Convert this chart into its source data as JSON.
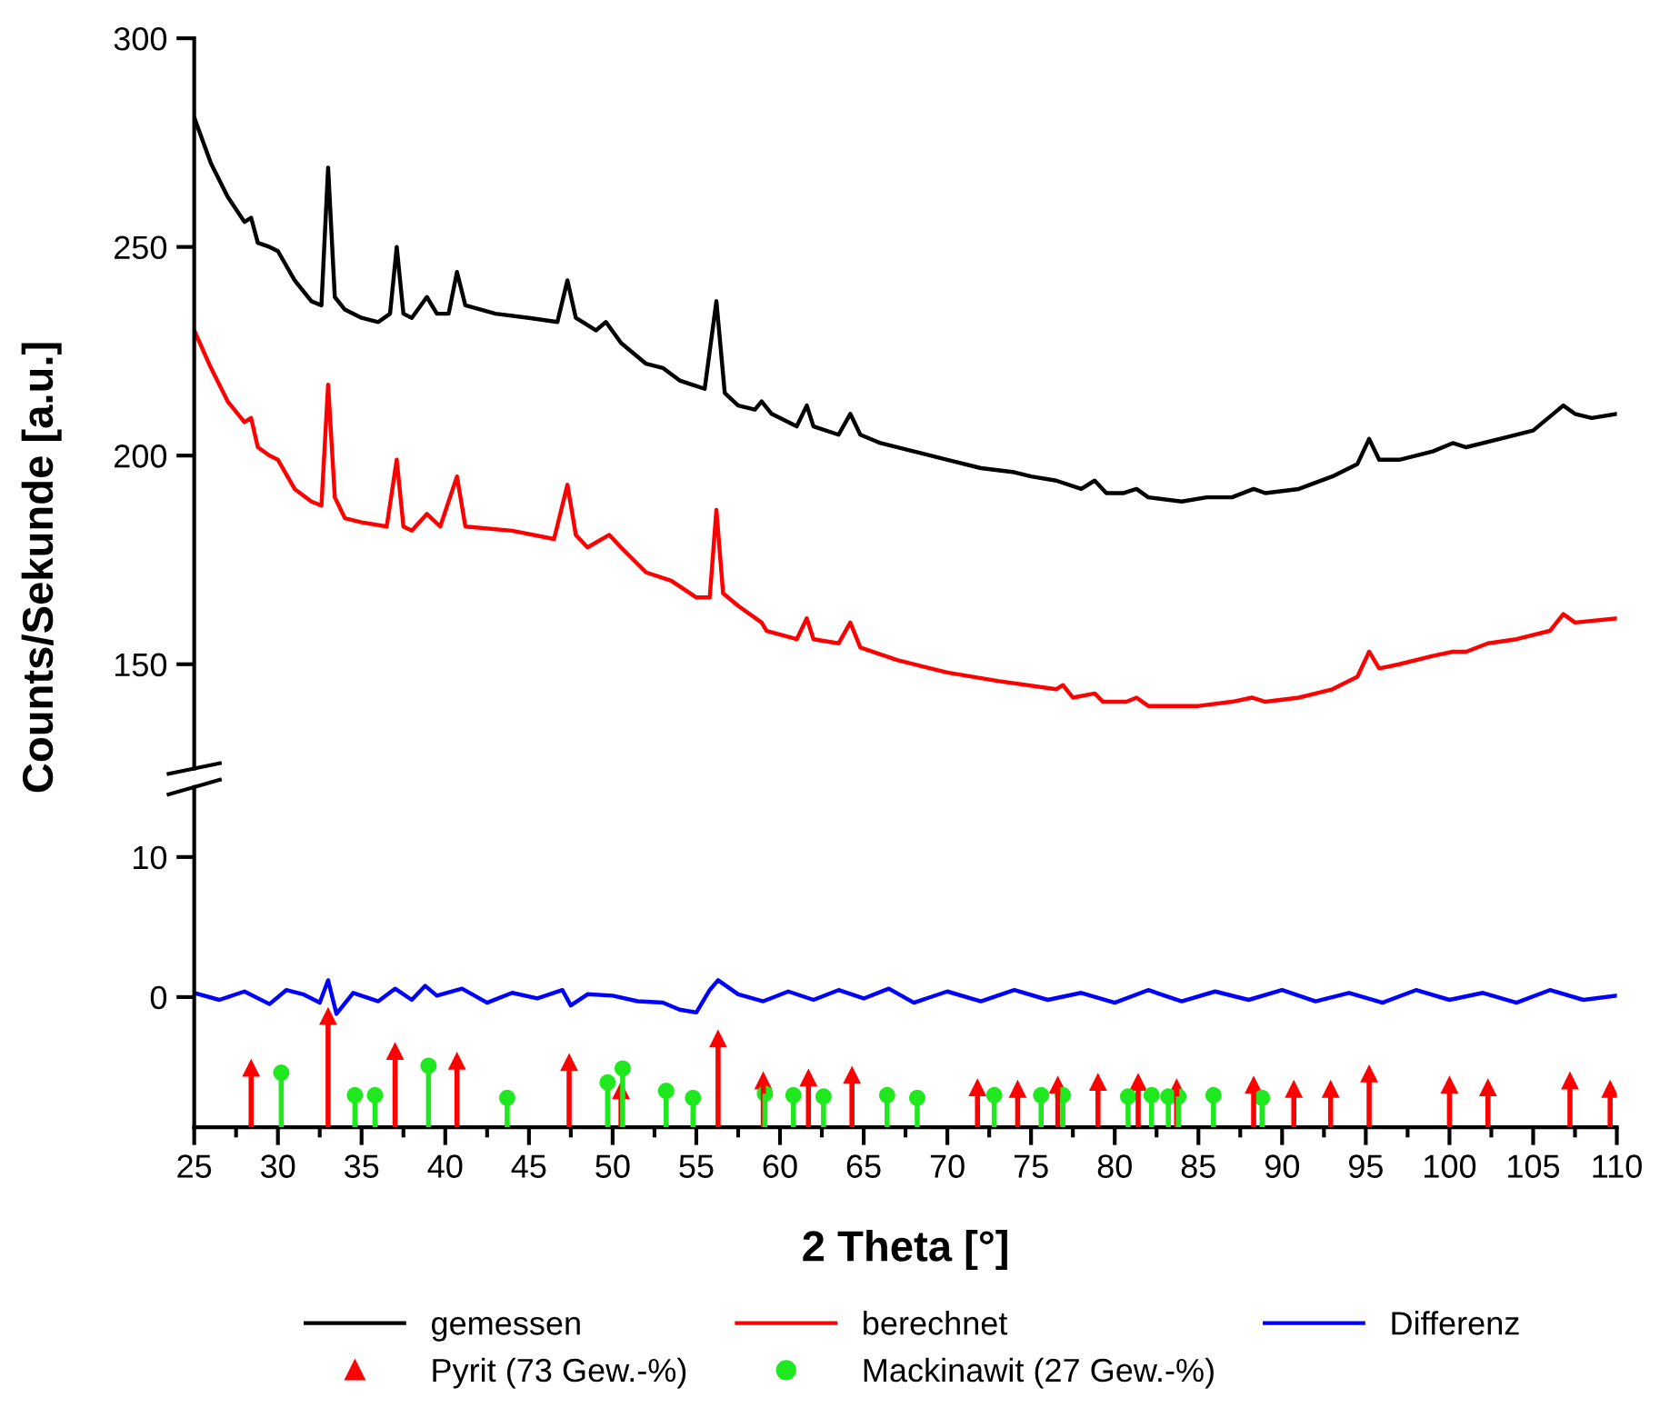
{
  "chart_data": [
    {
      "type": "line",
      "ylabel": "Counts/Sekunde [a.u.]",
      "xlim": [
        25,
        110
      ],
      "ylim": [
        125,
        300
      ],
      "yticks": [
        150,
        200,
        250,
        300
      ],
      "tick_labels": "y",
      "grid": false,
      "legend": "bottom",
      "marker": "none",
      "line_style": "solid",
      "series": [
        {
          "name": "gemessen",
          "color": "#000000",
          "x": [
            25,
            26,
            27,
            28,
            28.4,
            28.8,
            29.5,
            30,
            31,
            32,
            32.6,
            33,
            33.4,
            34,
            35,
            36,
            36.7,
            37.1,
            37.5,
            38,
            38.9,
            39.5,
            40.2,
            40.7,
            41.2,
            43,
            45,
            46.7,
            47.3,
            47.8,
            49,
            49.6,
            50.5,
            52,
            53,
            54,
            55.5,
            56.2,
            56.7,
            57.5,
            58.5,
            58.9,
            59.5,
            61,
            61.6,
            62,
            63.5,
            64.2,
            64.8,
            66,
            68,
            70,
            72,
            74,
            75,
            76.5,
            78,
            78.8,
            79.5,
            80.5,
            81.3,
            82,
            84,
            85.5,
            87,
            88.3,
            89,
            91,
            93,
            94.5,
            95.2,
            95.8,
            97,
            99,
            100.2,
            101,
            103,
            105,
            106.8,
            107.5,
            108.5,
            110
          ],
          "values": [
            281,
            270,
            262,
            256,
            257,
            251,
            250,
            249,
            242,
            237,
            236,
            269,
            238,
            235,
            233,
            232,
            234,
            250,
            234,
            233,
            238,
            234,
            234,
            244,
            236,
            234,
            233,
            232,
            242,
            233,
            230,
            232,
            227,
            222,
            221,
            218,
            216,
            237,
            215,
            212,
            211,
            213,
            210,
            207,
            212,
            207,
            205,
            210,
            205,
            203,
            201,
            199,
            197,
            196,
            195,
            194,
            192,
            194,
            191,
            191,
            192,
            190,
            189,
            190,
            190,
            192,
            191,
            192,
            195,
            198,
            204,
            199,
            199,
            201,
            203,
            202,
            204,
            206,
            212,
            210,
            209,
            210
          ]
        },
        {
          "name": "berechnet",
          "color": "#ff0000",
          "x": [
            25,
            26,
            27,
            28,
            28.4,
            28.8,
            29.5,
            30,
            31,
            32,
            32.6,
            33,
            33.4,
            34,
            35,
            36.5,
            37.1,
            37.5,
            38,
            38.9,
            39.7,
            40.7,
            41.2,
            44,
            46.5,
            47.3,
            47.8,
            48.5,
            49.8,
            50.5,
            52,
            53.5,
            55,
            55.8,
            56.2,
            56.6,
            57.5,
            58.9,
            59.2,
            61,
            61.6,
            62,
            63.5,
            64.2,
            64.8,
            67,
            70,
            73,
            76.5,
            76.9,
            77.5,
            78.8,
            79.3,
            80.7,
            81.3,
            82,
            83.5,
            85,
            87,
            88.2,
            89,
            91,
            93,
            94.5,
            95.2,
            95.8,
            97,
            99,
            100.2,
            101,
            102.3,
            104,
            106,
            106.8,
            107.5,
            110
          ],
          "values": [
            230,
            221,
            213,
            208,
            209,
            202,
            200,
            199,
            192,
            189,
            188,
            217,
            190,
            185,
            184,
            183,
            199,
            183,
            182,
            186,
            183,
            195,
            183,
            182,
            180,
            193,
            181,
            178,
            181,
            178,
            172,
            170,
            166,
            166,
            187,
            167,
            164,
            160,
            158,
            156,
            161,
            156,
            155,
            160,
            154,
            151,
            148,
            146,
            144,
            145,
            142,
            143,
            141,
            141,
            142,
            140,
            140,
            140,
            141,
            142,
            141,
            142,
            144,
            147,
            153,
            149,
            150,
            152,
            153,
            153,
            155,
            156,
            158,
            162,
            160,
            161
          ]
        }
      ]
    },
    {
      "type": "line",
      "xlabel": "2 Theta [°]",
      "xlim": [
        25,
        110
      ],
      "xticks": [
        25,
        30,
        35,
        40,
        45,
        50,
        55,
        60,
        65,
        70,
        75,
        80,
        85,
        90,
        95,
        100,
        105,
        110
      ],
      "ylim": [
        -9.3,
        15
      ],
      "yticks": [
        0,
        10
      ],
      "grid": false,
      "legend": "bottom",
      "line_style": "solid",
      "series": [
        {
          "name": "Differenz",
          "color": "#0000ff",
          "marker": "none",
          "x": [
            25,
            26.5,
            28,
            29.5,
            30.5,
            31.5,
            32.5,
            33,
            33.5,
            34.5,
            36,
            37,
            38,
            38.8,
            39.5,
            41,
            42.5,
            44,
            45.5,
            47,
            47.5,
            48.5,
            50,
            51.5,
            53,
            54,
            55,
            55.8,
            56.3,
            57.5,
            59,
            60.5,
            62,
            63.5,
            65,
            66.5,
            68,
            70,
            72,
            74,
            76,
            78,
            80,
            82,
            84,
            86,
            88,
            90,
            92,
            94,
            96,
            98,
            100,
            102,
            104,
            106,
            108,
            110
          ],
          "values": [
            0.3,
            -0.2,
            0.4,
            -0.5,
            0.5,
            0.2,
            -0.4,
            1.2,
            -1.2,
            0.3,
            -0.3,
            0.6,
            -0.2,
            0.8,
            0.1,
            0.6,
            -0.4,
            0.3,
            -0.1,
            0.5,
            -0.6,
            0.2,
            0.1,
            -0.3,
            -0.4,
            -0.9,
            -1.1,
            0.5,
            1.2,
            0.2,
            -0.3,
            0.4,
            -0.2,
            0.5,
            -0.1,
            0.6,
            -0.4,
            0.4,
            -0.3,
            0.5,
            -0.2,
            0.3,
            -0.4,
            0.5,
            -0.3,
            0.4,
            -0.2,
            0.5,
            -0.3,
            0.3,
            -0.4,
            0.5,
            -0.2,
            0.3,
            -0.4,
            0.5,
            -0.2,
            0.1
          ]
        },
        {
          "name": "Pyrit (73 Gew.-%)",
          "type": "scatter",
          "color": "#ff0000",
          "marker": "triangle",
          "errors": [
            [
              -9.3,
              -5.1
            ],
            [
              -9.3,
              -1.4
            ],
            [
              -9.3,
              -3.9
            ],
            [
              -9.3,
              -4.6
            ],
            [
              -9.3,
              -4.7
            ],
            [
              -9.3,
              -6.7
            ],
            [
              -9.3,
              -3.0
            ],
            [
              -9.3,
              -6.0
            ],
            [
              -9.3,
              -5.8
            ],
            [
              -9.3,
              -5.6
            ],
            [
              -9.3,
              -6.5
            ],
            [
              -9.3,
              -6.6
            ],
            [
              -9.3,
              -6.3
            ],
            [
              -9.3,
              -6.1
            ],
            [
              -9.3,
              -6.1
            ],
            [
              -9.3,
              -6.5
            ],
            [
              -9.3,
              -6.3
            ],
            [
              -9.3,
              -6.6
            ],
            [
              -9.3,
              -6.6
            ],
            [
              -9.3,
              -5.5
            ],
            [
              -9.3,
              -6.3
            ],
            [
              -9.3,
              -6.5
            ],
            [
              -9.3,
              -6.0
            ],
            [
              -9.3,
              -6.6
            ]
          ],
          "x": [
            28.4,
            33,
            37,
            40.7,
            47.4,
            50.5,
            56.3,
            59,
            61.7,
            64.3,
            71.8,
            74.2,
            76.6,
            79,
            81.4,
            83.7,
            88.3,
            90.7,
            92.9,
            95.2,
            100,
            102.3,
            107.2,
            109.6
          ],
          "values": [
            -5.1,
            -1.4,
            -3.9,
            -4.6,
            -4.7,
            -6.7,
            -3.0,
            -6.0,
            -5.8,
            -5.6,
            -6.5,
            -6.6,
            -6.3,
            -6.1,
            -6.1,
            -6.5,
            -6.3,
            -6.6,
            -6.6,
            -5.5,
            -6.3,
            -6.5,
            -6.0,
            -6.6
          ]
        },
        {
          "name": "Mackinawit (27 Gew.-%)",
          "type": "scatter",
          "color": "#1fe81f",
          "marker": "circle",
          "errors": [
            [
              -9.3,
              -5.4
            ],
            [
              -9.3,
              -7.0
            ],
            [
              -9.3,
              -7.0
            ],
            [
              -9.3,
              -4.9
            ],
            [
              -9.3,
              -7.2
            ],
            [
              -9.3,
              -6.1
            ],
            [
              -9.3,
              -5.1
            ],
            [
              -9.3,
              -6.7
            ],
            [
              -9.3,
              -7.2
            ],
            [
              -9.3,
              -6.9
            ],
            [
              -9.3,
              -7.0
            ],
            [
              -9.3,
              -7.1
            ],
            [
              -9.3,
              -7.0
            ],
            [
              -9.3,
              -7.2
            ],
            [
              -9.3,
              -7.0
            ],
            [
              -9.3,
              -7.0
            ],
            [
              -9.3,
              -7.0
            ],
            [
              -9.3,
              -7.1
            ],
            [
              -9.3,
              -7.0
            ],
            [
              -9.3,
              -7.1
            ],
            [
              -9.3,
              -7.1
            ],
            [
              -9.3,
              -7.0
            ],
            [
              -9.3,
              -7.2
            ]
          ],
          "x": [
            30.2,
            34.6,
            35.8,
            39,
            43.7,
            49.7,
            50.6,
            53.2,
            54.8,
            59.1,
            60.8,
            62.6,
            66.4,
            68.2,
            72.8,
            75.6,
            76.9,
            80.8,
            82.2,
            83.2,
            83.8,
            85.9,
            88.8
          ],
          "values": [
            -5.4,
            -7.0,
            -7.0,
            -4.9,
            -7.2,
            -6.1,
            -5.1,
            -6.7,
            -7.2,
            -6.9,
            -7.0,
            -7.1,
            -7.0,
            -7.2,
            -7.0,
            -7.0,
            -7.0,
            -7.1,
            -7.0,
            -7.1,
            -7.1,
            -7.0,
            -7.2
          ]
        }
      ]
    }
  ]
}
